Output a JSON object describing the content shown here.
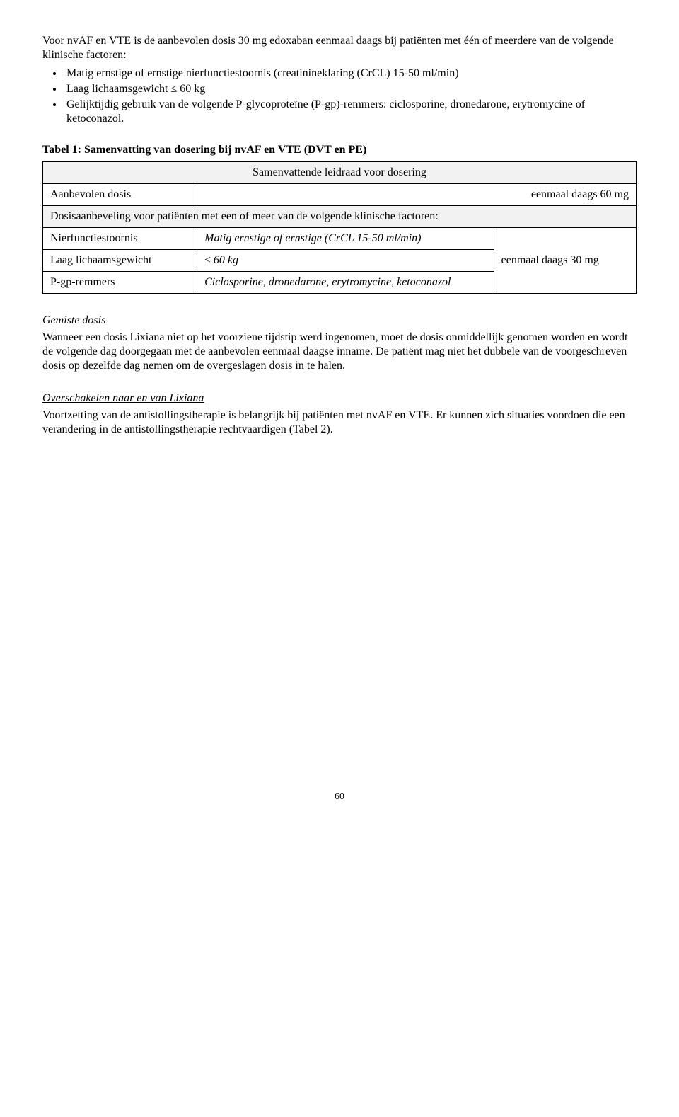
{
  "intro": {
    "para": "Voor nvAF en VTE is de aanbevolen dosis 30 mg edoxaban eenmaal daags bij patiënten met één of meerdere van de volgende klinische factoren:",
    "bullets": [
      "Matig ernstige of ernstige nierfunctiestoornis (creatinineklaring (CrCL) 15-50 ml/min)",
      "Laag lichaamsgewicht ≤ 60 kg",
      "Gelijktijdig gebruik van de volgende P-glycoproteïne (P-gp)-remmers: ciclosporine, dronedarone, erytromycine of ketoconazol."
    ]
  },
  "table1": {
    "title": "Tabel 1: Samenvatting van dosering bij nvAF en VTE (DVT en PE)",
    "header": "Samenvattende leidraad voor dosering",
    "row_recommended_label": "Aanbevolen dosis",
    "row_recommended_dose": "eenmaal daags 60 mg",
    "subheader": "Dosisaanbeveling voor patiënten met een of meer van de volgende klinische factoren:",
    "rows": [
      {
        "label": "Nierfunctiestoornis",
        "detail": "Matig ernstige of ernstige (CrCL 15-50 ml/min)"
      },
      {
        "label": "Laag lichaamsgewicht",
        "detail": "≤ 60 kg"
      },
      {
        "label": "P-gp-remmers",
        "detail": "Ciclosporine, dronedarone, erytromycine, ketoconazol"
      }
    ],
    "reduced_dose": "eenmaal daags 30 mg"
  },
  "missed": {
    "heading": "Gemiste dosis",
    "para": "Wanneer een dosis Lixiana niet op het voorziene tijdstip werd ingenomen, moet de dosis onmiddellijk genomen worden en wordt de volgende dag doorgegaan met de aanbevolen eenmaal daagse inname. De patiënt mag niet het dubbele van de voorgeschreven dosis op dezelfde dag nemen om de overgeslagen dosis in te halen."
  },
  "switch": {
    "heading": "Overschakelen naar en van Lixiana",
    "para": "Voortzetting van de antistollingstherapie is belangrijk bij patiënten met nvAF en VTE. Er kunnen zich situaties voordoen die een verandering in de antistollingstherapie rechtvaardigen (Tabel 2)."
  },
  "page_number": "60"
}
